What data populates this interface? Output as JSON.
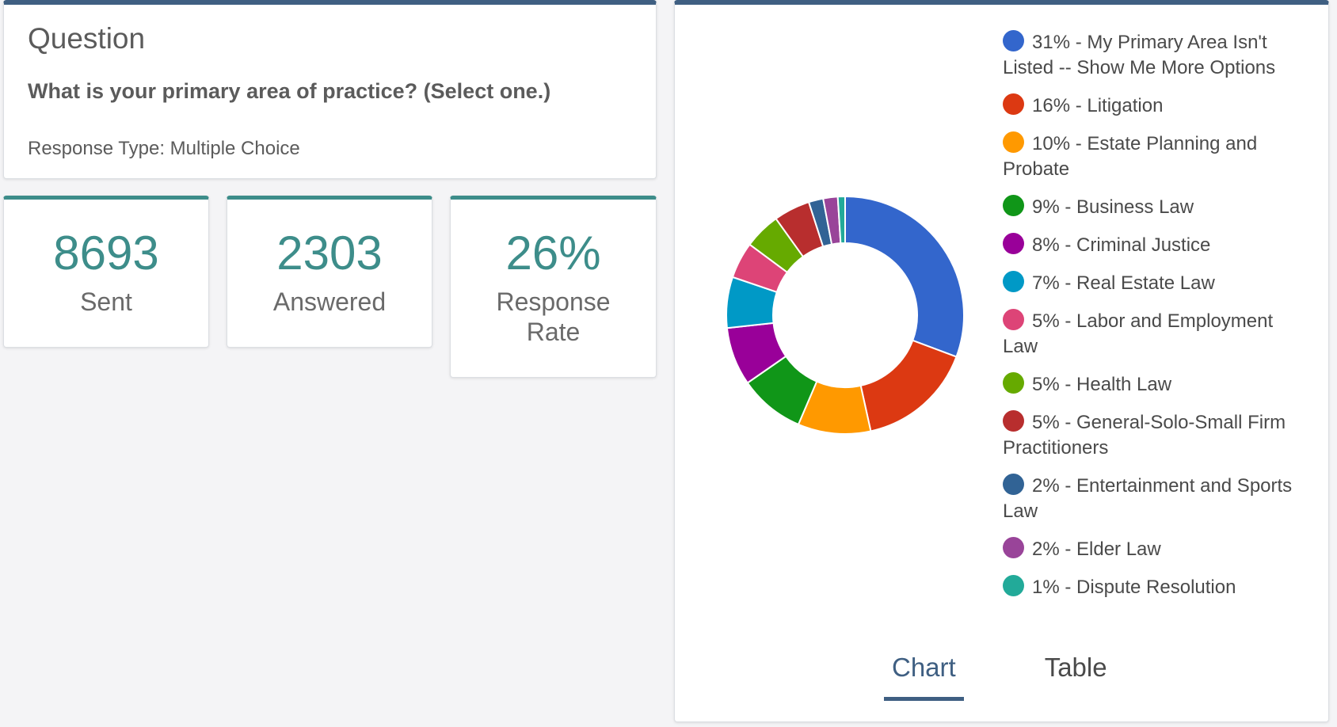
{
  "question": {
    "heading": "Question",
    "text": "What is your primary area of practice? (Select one.)",
    "response_type": "Response Type: Multiple Choice"
  },
  "stats": {
    "sent": {
      "value": "8693",
      "label": "Sent"
    },
    "answered": {
      "value": "2303",
      "label": "Answered"
    },
    "rate": {
      "value": "26%",
      "label": "Response Rate"
    }
  },
  "tabs": {
    "chart": "Chart",
    "table": "Table"
  },
  "chart_data": {
    "type": "pie",
    "categories": [
      "My Primary Area Isn't Listed -- Show Me More Options",
      "Litigation",
      "Estate Planning and Probate",
      "Business Law",
      "Criminal Justice",
      "Real Estate Law",
      "Labor and Employment Law",
      "Health Law",
      "General-Solo-Small Firm Practitioners",
      "Entertainment and Sports Law",
      "Elder Law",
      "Dispute Resolution"
    ],
    "values": [
      31,
      16,
      10,
      9,
      8,
      7,
      5,
      5,
      5,
      2,
      2,
      1
    ],
    "legend_labels": [
      "31% - My Primary Area Isn't Listed -- Show Me More Options",
      "16% - Litigation",
      "10% - Estate Planning and Probate",
      "9% - Business Law",
      "8% - Criminal Justice",
      "7% - Real Estate Law",
      "5% - Labor and Employment Law",
      "5% - Health Law",
      "5% - General-Solo-Small Firm Practitioners",
      "2% - Entertainment and Sports Law",
      "2% - Elder Law",
      "1% - Dispute Resolution"
    ],
    "colors": [
      "#3366cc",
      "#dc3912",
      "#ff9900",
      "#109618",
      "#990099",
      "#0099c6",
      "#dd4477",
      "#66aa00",
      "#b82e2e",
      "#316395",
      "#994499",
      "#22aa99"
    ],
    "legend_position": "right"
  }
}
